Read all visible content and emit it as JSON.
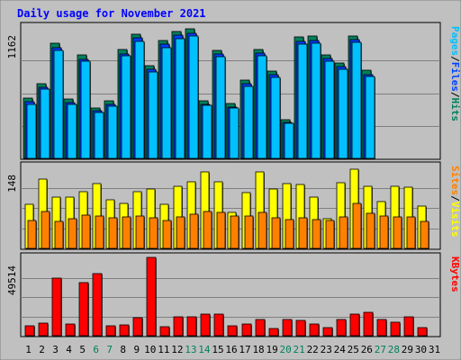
{
  "chart_data": {
    "type": "bar",
    "title": "Daily usage for November 2021",
    "categories": [
      "1",
      "2",
      "3",
      "4",
      "5",
      "6",
      "7",
      "8",
      "9",
      "10",
      "11",
      "12",
      "13",
      "14",
      "15",
      "16",
      "17",
      "18",
      "19",
      "20",
      "21",
      "22",
      "23",
      "24",
      "25",
      "26",
      "27",
      "28",
      "29",
      "30",
      "31"
    ],
    "weekend_days": [
      "6",
      "7",
      "13",
      "14",
      "20",
      "21",
      "27",
      "28"
    ],
    "panels": [
      {
        "ymax_label": "1162",
        "ymax": 1162,
        "axis_labels": [
          "Pages",
          "Files",
          "Hits"
        ],
        "series": [
          {
            "name": "Hits",
            "color": "#00805c",
            "values": [
              536,
              669,
              1024,
              529,
              923,
              452,
              509,
              969,
              1108,
              829,
              1048,
              1133,
              1155,
              515,
              965,
              491,
              698,
              972,
              777,
              346,
              1079,
              1088,
              922,
              850,
              1093,
              782,
              0,
              0,
              0,
              0,
              0
            ]
          },
          {
            "name": "Files",
            "color": "#0040ff",
            "values": [
              502,
              637,
              987,
              497,
              885,
              424,
              478,
              931,
              1071,
              793,
              1014,
              1097,
              1117,
              484,
              931,
              458,
              662,
              936,
              742,
              320,
              1043,
              1051,
              888,
              818,
              1057,
              747,
              0,
              0,
              0,
              0,
              0
            ]
          },
          {
            "name": "Pages",
            "color": "#00c0ff",
            "values": [
              483,
              614,
              962,
              481,
              863,
              411,
              463,
              910,
              1043,
              770,
              987,
              1068,
              1087,
              469,
              906,
              445,
              645,
              913,
              723,
              309,
              1016,
              1025,
              865,
              797,
              1030,
              729,
              0,
              0,
              0,
              0,
              0
            ]
          }
        ]
      },
      {
        "ymax_label": "148",
        "ymax": 148,
        "axis_labels": [
          "Sites",
          "Visits"
        ],
        "series": [
          {
            "name": "Visits",
            "color": "#ffff00",
            "values": [
              80,
              126,
              93,
              93,
              103,
              118,
              88,
              83,
              103,
              109,
              80,
              113,
              121,
              140,
              121,
              65,
              102,
              140,
              108,
              118,
              116,
              94,
              54,
              120,
              144,
              114,
              85,
              113,
              111,
              78,
              0
            ]
          },
          {
            "name": "Sites",
            "color": "#ff8000",
            "values": [
              51,
              67,
              50,
              55,
              61,
              59,
              56,
              57,
              59,
              56,
              51,
              57,
              63,
              68,
              66,
              60,
              59,
              66,
              56,
              52,
              56,
              52,
              51,
              57,
              82,
              64,
              60,
              58,
              58,
              49,
              0
            ]
          }
        ]
      },
      {
        "ymax_label": "49514",
        "ymax": 49514,
        "axis_labels": [
          "KBytes"
        ],
        "series": [
          {
            "name": "KBytes",
            "color": "#ff0000",
            "values": [
              6600,
              8000,
              37000,
              7400,
              34000,
              40000,
              6300,
              7000,
              11700,
              50000,
              5500,
              12200,
              12000,
              14000,
              14000,
              6500,
              7600,
              10500,
              4500,
              10200,
              10000,
              7200,
              5000,
              10500,
              13800,
              15000,
              10400,
              8600,
              12000,
              5000,
              0
            ]
          }
        ]
      }
    ]
  }
}
